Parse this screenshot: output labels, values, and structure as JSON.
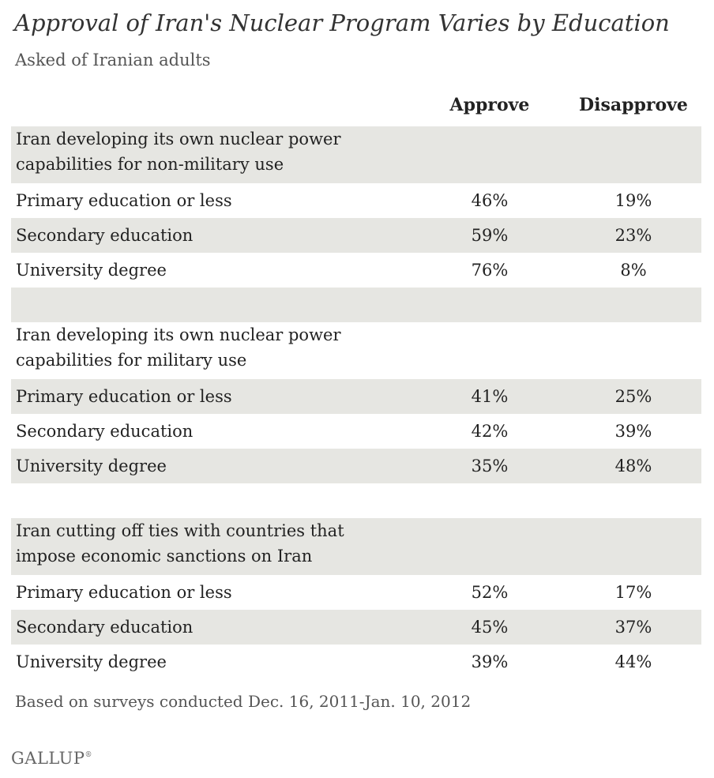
{
  "title": "Approval of Iran's Nuclear Program Varies by Education",
  "subtitle": "Asked of Iranian adults",
  "columns": {
    "approve": "Approve",
    "disapprove": "Disapprove"
  },
  "chart_data": {
    "type": "table",
    "title": "Approval of Iran's Nuclear Program Varies by Education",
    "subtitle": "Asked of Iranian adults",
    "columns": [
      "Approve",
      "Disapprove"
    ],
    "groups": [
      {
        "heading": "Iran developing its own nuclear power capabilities for non-military use",
        "rows": [
          {
            "label": "Primary education or less",
            "approve": "46%",
            "disapprove": "19%"
          },
          {
            "label": "Secondary education",
            "approve": "59%",
            "disapprove": "23%"
          },
          {
            "label": "University degree",
            "approve": "76%",
            "disapprove": "8%"
          }
        ]
      },
      {
        "heading": "Iran developing its own nuclear power capabilities for military use",
        "rows": [
          {
            "label": "Primary education or less",
            "approve": "41%",
            "disapprove": "25%"
          },
          {
            "label": "Secondary education",
            "approve": "42%",
            "disapprove": "39%"
          },
          {
            "label": "University degree",
            "approve": "35%",
            "disapprove": "48%"
          }
        ]
      },
      {
        "heading": "Iran cutting off ties with countries that impose economic sanctions on Iran",
        "rows": [
          {
            "label": "Primary education or less",
            "approve": "52%",
            "disapprove": "17%"
          },
          {
            "label": "Secondary education",
            "approve": "45%",
            "disapprove": "37%"
          },
          {
            "label": "University degree",
            "approve": "39%",
            "disapprove": "44%"
          }
        ]
      }
    ]
  },
  "footnote": "Based on surveys conducted Dec. 16, 2011-Jan. 10, 2012",
  "logo": "GALLUP",
  "logo_mark": "®",
  "colors": {
    "shade": "#e6e6e2",
    "text": "#222222",
    "muted": "#555555"
  }
}
